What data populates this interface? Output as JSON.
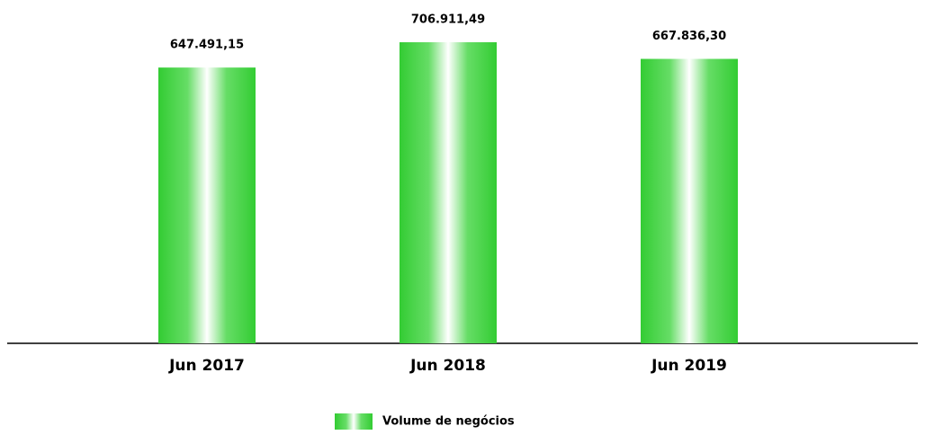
{
  "chart_data": {
    "type": "bar",
    "categories": [
      "Jun 2017",
      "Jun 2018",
      "Jun 2019"
    ],
    "series": [
      {
        "name": "Volume de negócios",
        "color": "#33cc33",
        "values": [
          647491.15,
          706911.49,
          667836.3
        ],
        "value_labels": [
          "647.491,15",
          "706.911,49",
          "667.836,30"
        ]
      }
    ]
  }
}
